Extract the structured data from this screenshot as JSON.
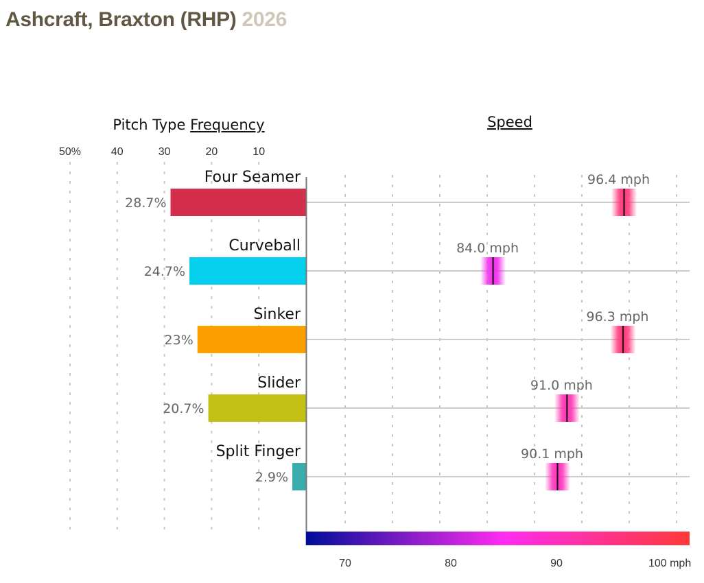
{
  "header": {
    "player": "Ashcraft, Braxton (RHP)",
    "year": "2026"
  },
  "chart_data": [
    {
      "type": "bar",
      "title_prefix": "Pitch Type ",
      "title_link": "Frequency",
      "orientation": "horizontal-left",
      "xlim": [
        0,
        50
      ],
      "ticks": [
        {
          "value": 50,
          "label": "50%"
        },
        {
          "value": 40,
          "label": "40"
        },
        {
          "value": 30,
          "label": "30"
        },
        {
          "value": 20,
          "label": "20"
        },
        {
          "value": 10,
          "label": "10"
        }
      ],
      "categories": [
        "Four Seamer",
        "Curveball",
        "Sinker",
        "Slider",
        "Split Finger"
      ],
      "values": [
        28.7,
        24.7,
        23,
        20.7,
        2.9
      ],
      "value_labels": [
        "28.7%",
        "24.7%",
        "23%",
        "20.7%",
        "2.9%"
      ],
      "colors": [
        "#d32f4d",
        "#04d0ee",
        "#fd9f00",
        "#c3c015",
        "#3aacac"
      ]
    },
    {
      "type": "scatter",
      "title": "Speed",
      "xlim": [
        66.3,
        102.6
      ],
      "ticks": [
        {
          "value": 70,
          "label": "70"
        },
        {
          "value": 80,
          "label": "80"
        },
        {
          "value": 90,
          "label": "90"
        },
        {
          "value": 100,
          "label": "100 mph"
        }
      ],
      "categories": [
        "Four Seamer",
        "Curveball",
        "Sinker",
        "Slider",
        "Split Finger"
      ],
      "values": [
        96.4,
        84.0,
        96.3,
        91.0,
        90.1
      ],
      "value_labels": [
        "96.4 mph",
        "84.0 mph",
        "96.3 mph",
        "91.0 mph",
        "90.1 mph"
      ],
      "colorscale": [
        "#000d99",
        "#ff2cf0",
        "#ff3838"
      ],
      "colorscale_stops": [
        66.3,
        85,
        102.6
      ]
    }
  ]
}
